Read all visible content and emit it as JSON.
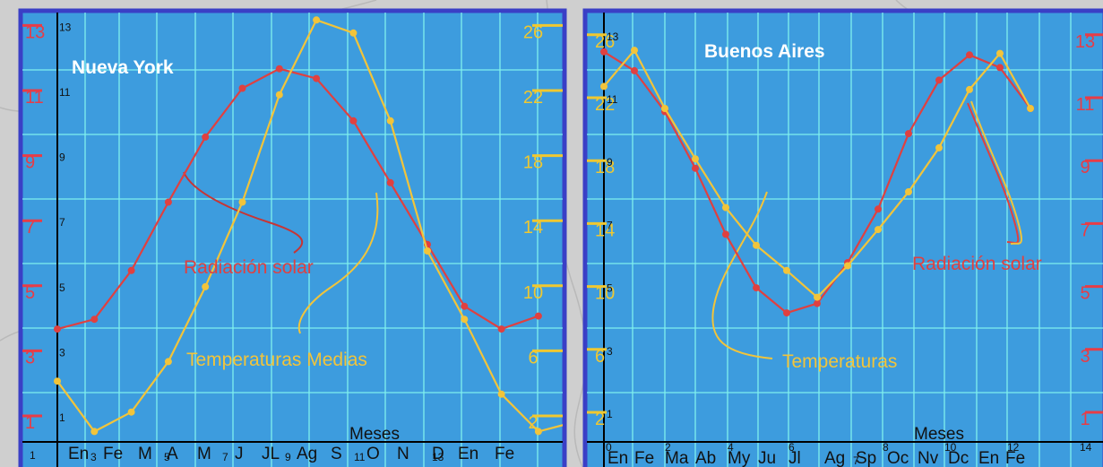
{
  "chart_data": [
    {
      "type": "line",
      "title": "Nueva York",
      "xlabel": "Meses",
      "x_months": [
        "En",
        "Fe",
        "M",
        "A",
        "M",
        "J",
        "JL",
        "Ag",
        "S",
        "O",
        "N",
        "D",
        "En",
        "Fe"
      ],
      "x_index_labels": [
        "1",
        "3",
        "5",
        "7",
        "9",
        "11",
        "13"
      ],
      "left_axis_outer": {
        "ticks": [
          "1",
          "3",
          "5",
          "7",
          "9",
          "11",
          "13"
        ],
        "color": "#e83c46"
      },
      "left_axis_inner": {
        "ticks": [
          "1",
          "3",
          "5",
          "7",
          "9",
          "11",
          "13"
        ]
      },
      "right_axis": {
        "ticks": [
          "2",
          "6",
          "10",
          "14",
          "18",
          "22",
          "26"
        ],
        "color": "#f0c830",
        "ylim": [
          0,
          28
        ]
      },
      "series": [
        {
          "name": "Radiación solar",
          "color": "#e04040",
          "axis": "left",
          "x": [
            0,
            1,
            2,
            3,
            4,
            5,
            6,
            7,
            8,
            9,
            10,
            11,
            12,
            13
          ],
          "y": [
            4.0,
            4.3,
            5.8,
            7.9,
            9.9,
            11.4,
            12.0,
            11.7,
            10.4,
            8.5,
            6.6,
            4.7,
            4.0,
            4.4
          ]
        },
        {
          "name": "Temperaturas Medias",
          "color": "#f2c43a",
          "axis": "right",
          "x": [
            0,
            1,
            2,
            3,
            4,
            5,
            6,
            7,
            8,
            9,
            10,
            11,
            12,
            13,
            14
          ],
          "y": [
            4.8,
            1.7,
            2.9,
            6.0,
            10.6,
            15.8,
            22.4,
            27.0,
            26.2,
            20.8,
            12.8,
            8.6,
            4.0,
            1.7,
            2.3
          ]
        }
      ],
      "annotations": [
        "Radiación solar",
        "Temperaturas Medias"
      ]
    },
    {
      "type": "line",
      "title": "Buenos Aires",
      "xlabel": "Meses",
      "x_months": [
        "En",
        "Fe",
        "Ma",
        "Ab",
        "My",
        "Ju",
        "Jl",
        "Ag",
        "Sp",
        "Oc",
        "Nv",
        "Dc",
        "En",
        "Fe"
      ],
      "x_index_labels": [
        "0",
        "2",
        "4",
        "6",
        "7",
        "8",
        "10",
        "12",
        "14"
      ],
      "left_axis_outer": {
        "ticks": [
          "2",
          "6",
          "10",
          "14",
          "18",
          "22",
          "26"
        ],
        "color": "#f0c830",
        "ylim": [
          0,
          28
        ]
      },
      "left_axis_inner": {
        "ticks": [
          "1",
          "3",
          "5",
          "7",
          "9",
          "11",
          "13"
        ]
      },
      "right_axis": {
        "ticks": [
          "1",
          "3",
          "5",
          "7",
          "9",
          "11",
          "13"
        ],
        "color": "#e83c46"
      },
      "series": [
        {
          "name": "Radiación solar",
          "color": "#e04040",
          "axis": "inner",
          "x": [
            0,
            1,
            2,
            3,
            4,
            5,
            6,
            7,
            8,
            9,
            10,
            11,
            12,
            13,
            14
          ],
          "y": [
            12.8,
            12.2,
            10.9,
            9.1,
            7.0,
            5.3,
            4.5,
            4.8,
            6.1,
            7.8,
            10.2,
            11.9,
            12.7,
            12.3,
            11.0
          ]
        },
        {
          "name": "Temperaturas",
          "color": "#f2c43a",
          "axis": "outer",
          "x": [
            0,
            1,
            2,
            3,
            4,
            5,
            6,
            7,
            8,
            9,
            10,
            11,
            12,
            13,
            14
          ],
          "y": [
            23.4,
            25.7,
            22.0,
            18.8,
            15.7,
            13.3,
            11.7,
            10.0,
            12.0,
            14.3,
            16.7,
            19.5,
            23.2,
            25.5,
            22.0
          ]
        }
      ],
      "annotations": [
        "Radiación solar",
        "Temperaturas"
      ]
    }
  ]
}
